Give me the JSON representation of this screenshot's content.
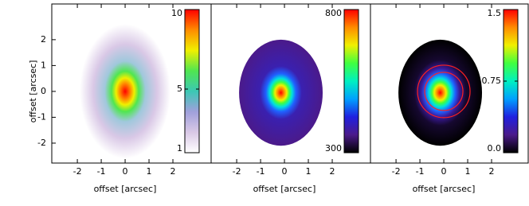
{
  "chart_data": [
    {
      "type": "image",
      "xlabel": "offset [arcsec]",
      "ylabel": "offset [arcsec]",
      "xlim": [
        -3.07,
        3.6
      ],
      "ylim": [
        -2.77,
        3.38
      ],
      "xticks": [
        -2,
        -1,
        0,
        1,
        2
      ],
      "yticks": [
        -2,
        -1,
        0,
        1,
        2
      ],
      "clim": [
        1,
        10
      ],
      "cticks": [
        1,
        5,
        10
      ],
      "colormap": [
        "#ffffff",
        "#d9c8e6",
        "#a0a0dc",
        "#3cc8b4",
        "#50e650",
        "#f0f000",
        "#ff8c00",
        "#ff0000"
      ]
    },
    {
      "type": "image",
      "xlabel": "offset [arcsec]",
      "xlim": [
        -3.07,
        3.6
      ],
      "ylim": [
        -2.77,
        3.38
      ],
      "xticks": [
        -2,
        -1,
        0,
        1,
        2
      ],
      "clim": [
        300,
        800
      ],
      "cticks": [
        300,
        800
      ],
      "colormap": [
        "#000000",
        "#4b1a8a",
        "#2020e0",
        "#00a0ff",
        "#00f0c0",
        "#40ff40",
        "#f0f000",
        "#ff8c00",
        "#ff0000"
      ]
    },
    {
      "type": "image",
      "xlabel": "offset [arcsec]",
      "xlim": [
        -3.07,
        3.6
      ],
      "ylim": [
        -2.77,
        3.38
      ],
      "xticks": [
        -2,
        -1,
        0,
        1,
        2
      ],
      "clim": [
        0,
        1.5
      ],
      "cticks": [
        {
          "value": 0,
          "label": "0.0"
        },
        0.75,
        {
          "value": 1.5,
          "label": "1.5"
        }
      ],
      "colormap": [
        "#000000",
        "#4b1a8a",
        "#2020e0",
        "#00a0ff",
        "#00f0c0",
        "#40ff40",
        "#f0f000",
        "#ff8c00",
        "#ff0000"
      ],
      "apertures": [
        0.8,
        1.1
      ],
      "aperture_color": "#ff2020"
    }
  ]
}
